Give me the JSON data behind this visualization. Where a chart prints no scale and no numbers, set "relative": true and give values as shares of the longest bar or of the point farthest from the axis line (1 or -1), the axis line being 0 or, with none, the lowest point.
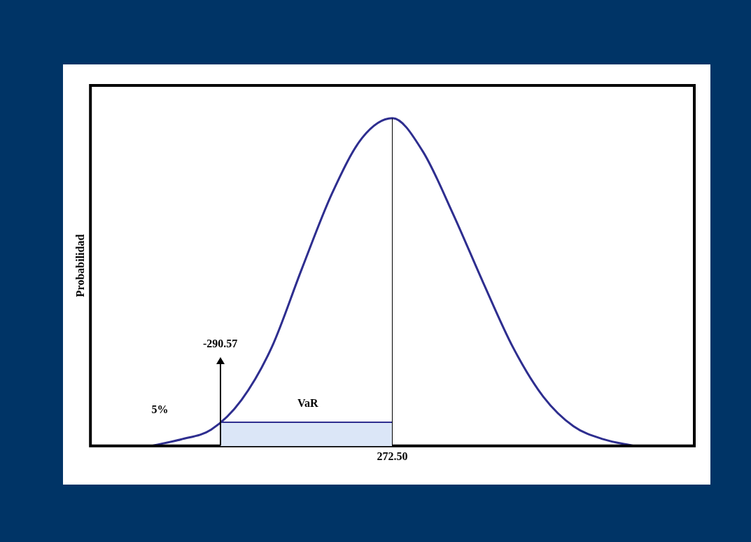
{
  "chart_data": {
    "type": "line",
    "ylabel": "Probabilidad",
    "relative": true,
    "grid": false,
    "legend": false,
    "marker": "none",
    "line_style": "solid",
    "categories": [
      null,
      null,
      null,
      null,
      null,
      null,
      null,
      null,
      null,
      null,
      null,
      null,
      null,
      null,
      null,
      null,
      null,
      null,
      null,
      null,
      null
    ],
    "series": [
      {
        "color": "#2e2e8f",
        "values": [
          null,
          null,
          0,
          0.02,
          0.05,
          0.14,
          0.3,
          0.54,
          0.77,
          0.94,
          1,
          0.9,
          0.71,
          0.5,
          0.3,
          0.15,
          0.06,
          0.02,
          0,
          null,
          null
        ]
      }
    ],
    "annotations": [
      "-290.57",
      "VaR",
      "5%",
      "272.50"
    ]
  }
}
